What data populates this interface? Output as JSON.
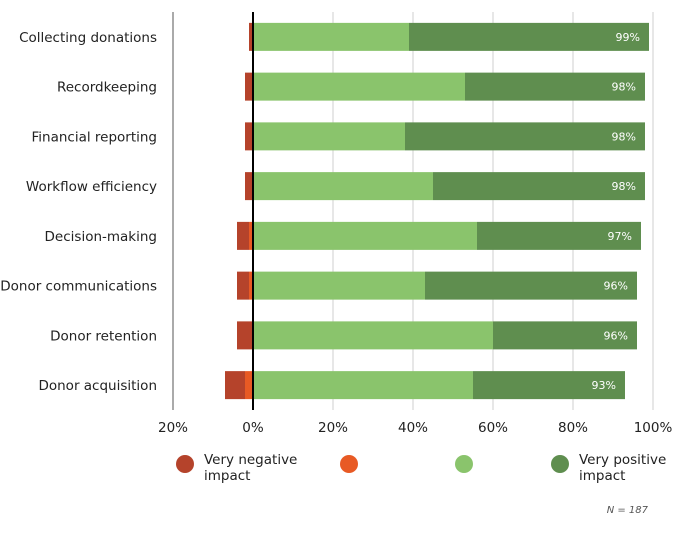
{
  "chart_data": {
    "type": "bar",
    "orientation": "horizontal",
    "stacked": "diverging",
    "categories": [
      "Collecting donations",
      "Recordkeeping",
      "Financial reporting",
      "Workflow efficiency",
      "Decision-making",
      "Donor communications",
      "Donor retention",
      "Donor acquisition"
    ],
    "series": [
      {
        "name": "Very negative impact",
        "color": "#b5432b",
        "values": [
          -1,
          -2,
          -2,
          -2,
          -3,
          -3,
          -4,
          -5
        ]
      },
      {
        "name": "",
        "color": "#e85a24",
        "values": [
          0,
          0,
          0,
          0,
          -1,
          -1,
          0,
          -2
        ]
      },
      {
        "name": "",
        "color": "#8ac46c",
        "values": [
          39,
          53,
          38,
          45,
          56,
          43,
          60,
          55
        ]
      },
      {
        "name": "Very positive impact",
        "color": "#5f8e4f",
        "values": [
          60,
          45,
          60,
          53,
          41,
          53,
          36,
          38
        ]
      }
    ],
    "data_labels": [
      "99%",
      "98%",
      "98%",
      "98%",
      "97%",
      "96%",
      "96%",
      "93%"
    ],
    "xlim": [
      -20,
      100
    ],
    "x_ticks": [
      "20%",
      "0%",
      "20%",
      "40%",
      "60%",
      "80%",
      "100%"
    ],
    "x_tick_values": [
      -20,
      0,
      20,
      40,
      60,
      80,
      100
    ],
    "grid": true,
    "legend_position": "bottom"
  },
  "legend": {
    "items": [
      {
        "label": "Very negative impact",
        "color": "#b5432b"
      },
      {
        "label": "",
        "color": "#e85a24"
      },
      {
        "label": "",
        "color": "#8ac46c"
      },
      {
        "label": "Very positive impact",
        "color": "#5f8e4f"
      }
    ]
  },
  "note": "N = 187"
}
